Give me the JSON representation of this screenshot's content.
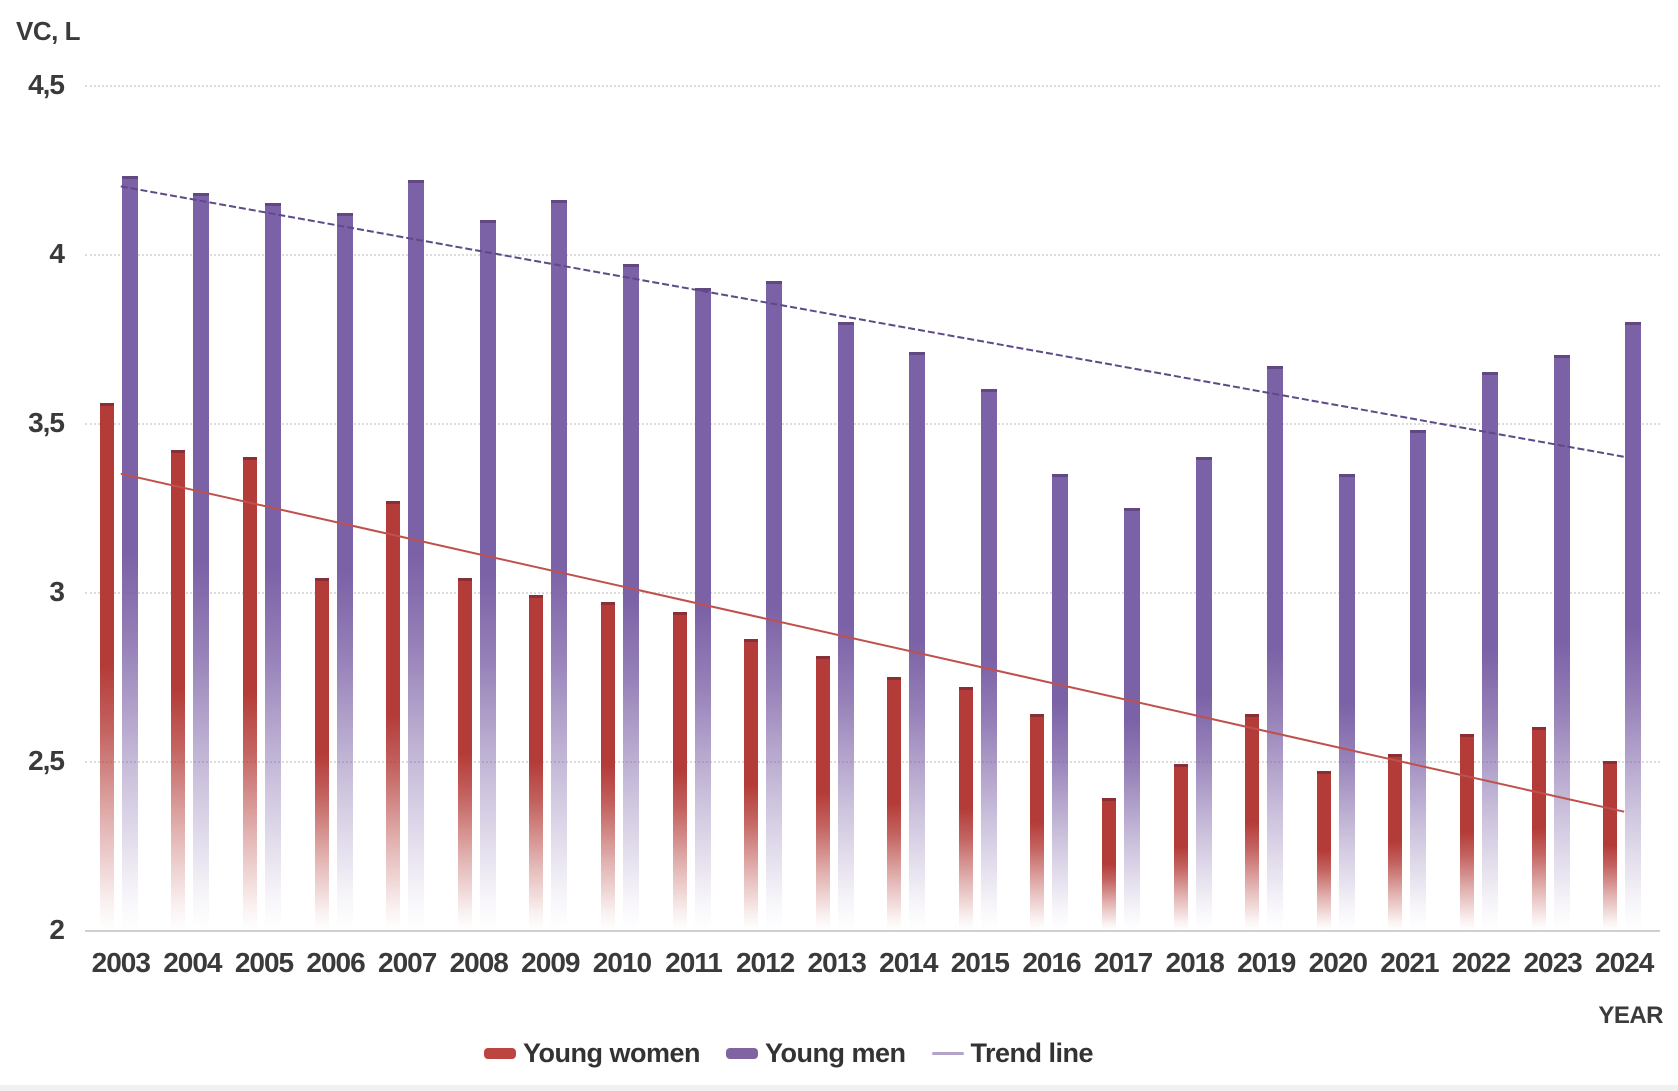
{
  "chart_data": {
    "type": "bar",
    "title": "",
    "ylabel": "VC, L",
    "xlabel": "YEAR",
    "ylim": [
      2,
      4.5
    ],
    "grid": true,
    "legend_position": "bottom",
    "yticks": [
      {
        "value": 2,
        "label": "2"
      },
      {
        "value": 2.5,
        "label": "2,5"
      },
      {
        "value": 3,
        "label": "3"
      },
      {
        "value": 3.5,
        "label": "3,5"
      },
      {
        "value": 4,
        "label": "4"
      },
      {
        "value": 4.5,
        "label": "4,5"
      }
    ],
    "categories": [
      "2003",
      "2004",
      "2005",
      "2006",
      "2007",
      "2008",
      "2009",
      "2010",
      "2011",
      "2012",
      "2013",
      "2014",
      "2015",
      "2016",
      "2017",
      "2018",
      "2019",
      "2020",
      "2021",
      "2022",
      "2023",
      "2024"
    ],
    "series": [
      {
        "name": "Young women",
        "color": "#b43c38",
        "values": [
          3.56,
          3.42,
          3.4,
          3.04,
          3.27,
          3.04,
          2.99,
          2.97,
          2.94,
          2.86,
          2.81,
          2.75,
          2.72,
          2.64,
          2.39,
          2.49,
          2.64,
          2.47,
          2.52,
          2.58,
          2.6,
          2.5
        ]
      },
      {
        "name": "Young men",
        "color": "#7b61a6",
        "values": [
          4.23,
          4.18,
          4.15,
          4.12,
          4.22,
          4.1,
          4.16,
          3.97,
          3.9,
          3.92,
          3.8,
          3.71,
          3.6,
          3.35,
          3.25,
          3.4,
          3.67,
          3.35,
          3.48,
          3.65,
          3.7,
          3.8
        ]
      }
    ],
    "trend_lines": [
      {
        "name": "Trend line",
        "series": "Young men",
        "start_year": "2003",
        "end_year": "2024",
        "start_value": 4.2,
        "end_value": 3.4,
        "color": "#5d4a86",
        "dashed": true
      },
      {
        "name": "Trend line",
        "series": "Young women",
        "start_year": "2003",
        "end_year": "2024",
        "start_value": 3.35,
        "end_value": 2.35,
        "color": "#c0504d",
        "dashed": false
      }
    ],
    "legend": [
      {
        "label": "Young women",
        "swatch": "bar",
        "color": "#bb4541"
      },
      {
        "label": "Young men",
        "swatch": "bar",
        "color": "#8064a2"
      },
      {
        "label": "Trend line",
        "swatch": "line",
        "color": "#b3a3c8"
      }
    ]
  },
  "labels": {
    "y_axis_title": "VC, L",
    "x_axis_title": "YEAR"
  }
}
